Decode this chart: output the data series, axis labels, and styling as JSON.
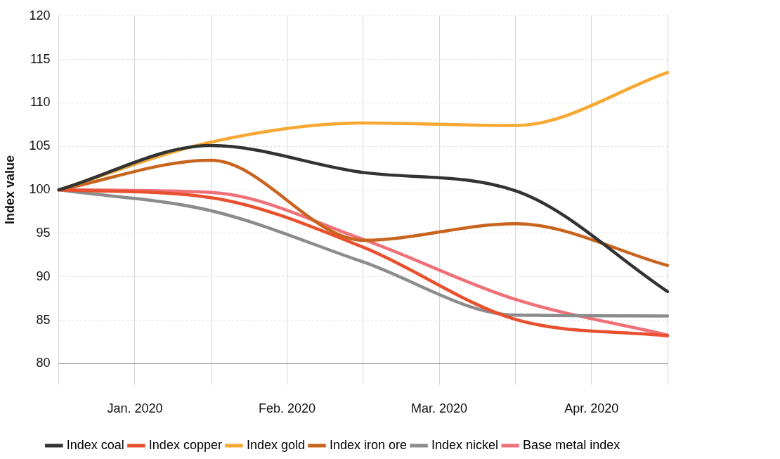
{
  "chart_data": {
    "type": "line",
    "ylabel": "Index value",
    "categories": [
      null,
      "Jan. 2020",
      null,
      "Feb. 2020",
      null,
      "Mar. 2020",
      null,
      "Apr. 2020",
      null
    ],
    "ylim": [
      80,
      120
    ],
    "yticks": [
      80,
      85,
      90,
      95,
      100,
      105,
      110,
      115,
      120
    ],
    "grid": true,
    "legend": "bottom",
    "marker": "none",
    "line_style": "solid",
    "series": [
      {
        "name": "Index coal",
        "color": "#333333",
        "values": [
          100,
          null,
          105.1,
          null,
          102,
          null,
          99.9,
          null,
          88.3
        ]
      },
      {
        "name": "Index copper",
        "color": "#e8502e",
        "values": [
          100,
          null,
          99.1,
          null,
          93.4,
          null,
          85.1,
          null,
          83.2
        ]
      },
      {
        "name": "Index gold",
        "color": "#f7a833",
        "values": [
          100,
          null,
          105.5,
          null,
          107.7,
          null,
          107.4,
          null,
          113.5
        ]
      },
      {
        "name": "Index iron ore",
        "color": "#c8641e",
        "values": [
          100,
          null,
          103.4,
          null,
          94.2,
          null,
          96.1,
          null,
          91.3
        ]
      },
      {
        "name": "Index nickel",
        "color": "#8c8c8c",
        "values": [
          100,
          null,
          97.6,
          null,
          91.7,
          null,
          85.6,
          null,
          85.5
        ]
      },
      {
        "name": "Base metal index",
        "color": "#f07078",
        "values": [
          100,
          null,
          99.7,
          null,
          94.3,
          null,
          87.4,
          null,
          83.3
        ]
      }
    ]
  }
}
